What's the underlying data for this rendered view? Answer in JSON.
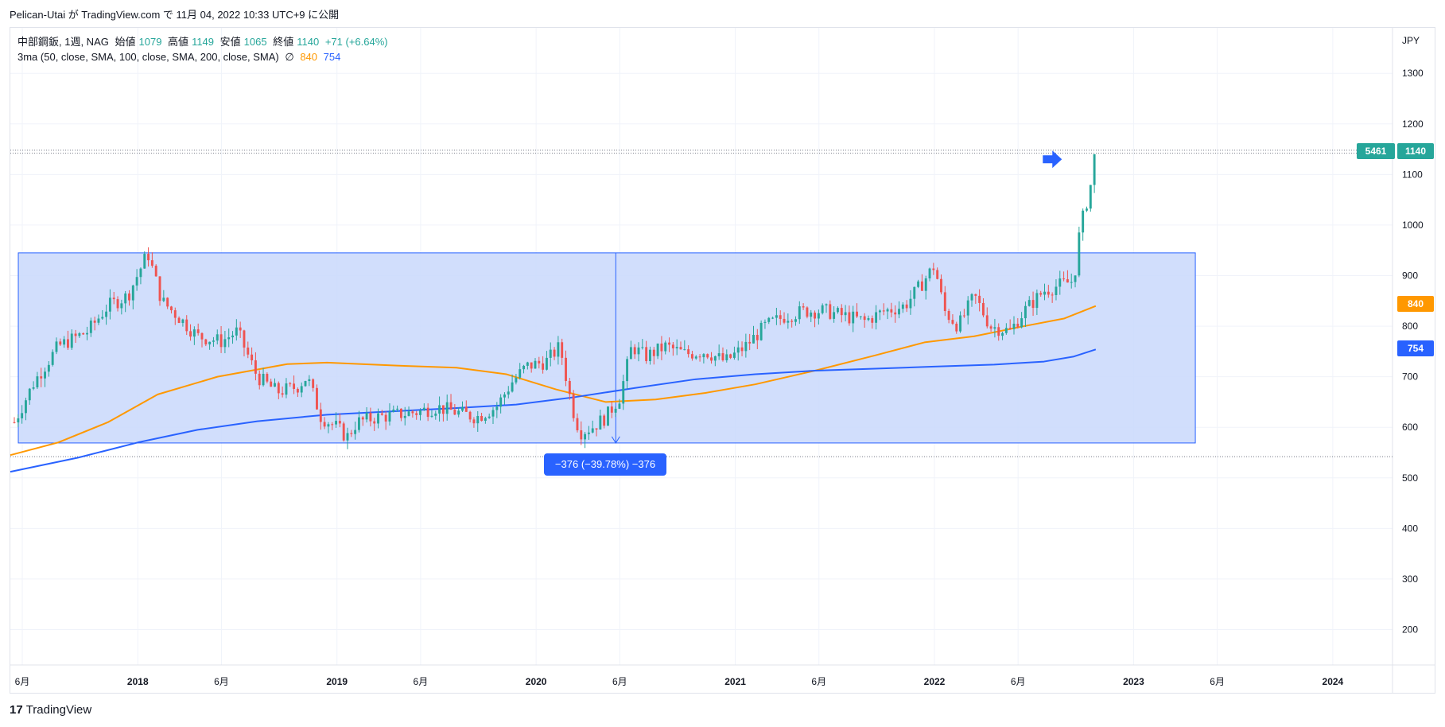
{
  "publisher_line": "Pelican-Utai が TradingView.com で 11月 04, 2022 10:33 UTC+9 に公開",
  "legend": {
    "symbol": "中部鋼鈑, 1週, NAG",
    "open_label": "始値",
    "open": "1079",
    "high_label": "高値",
    "high": "1149",
    "low_label": "安値",
    "low": "1065",
    "close_label": "終値",
    "close": "1140",
    "change": "+71 (+6.64%)",
    "ma_label": "3ma (50, close, SMA, 100, close, SMA, 200, close, SMA)",
    "ma_empty": "∅",
    "ma100": "840",
    "ma200": "754"
  },
  "badges": {
    "countdown": "5461",
    "last_price": "1140",
    "ma100": "840",
    "ma200": "754"
  },
  "measurement_label": "−376 (−39.78%) −376",
  "footer": {
    "logo_mark": "17",
    "logo_text": "TradingView"
  },
  "colors": {
    "up": "#26a69a",
    "down": "#ef5350",
    "ma100": "#ff9800",
    "ma200": "#2962ff",
    "range_fill": "#c9d8fb",
    "range_stroke": "#2962ff",
    "grid": "#f0f3fa"
  },
  "chart_data": {
    "type": "candlestick",
    "title": "中部鋼鈑, 1週, NAG",
    "currency": "JPY",
    "ylim": [
      130,
      1390
    ],
    "y_ticks": [
      200,
      300,
      400,
      500,
      600,
      700,
      800,
      900,
      1000,
      1100,
      1200,
      1300
    ],
    "x_axis": [
      {
        "label": "6月",
        "t": 2017.42,
        "bold": false
      },
      {
        "label": "2018",
        "t": 2018.0,
        "bold": true
      },
      {
        "label": "6月",
        "t": 2018.42,
        "bold": false
      },
      {
        "label": "2019",
        "t": 2019.0,
        "bold": true
      },
      {
        "label": "6月",
        "t": 2019.42,
        "bold": false
      },
      {
        "label": "2020",
        "t": 2020.0,
        "bold": true
      },
      {
        "label": "6月",
        "t": 2020.42,
        "bold": false
      },
      {
        "label": "2021",
        "t": 2021.0,
        "bold": true
      },
      {
        "label": "6月",
        "t": 2021.42,
        "bold": false
      },
      {
        "label": "2022",
        "t": 2022.0,
        "bold": true
      },
      {
        "label": "6月",
        "t": 2022.42,
        "bold": false
      },
      {
        "label": "2023",
        "t": 2023.0,
        "bold": true
      },
      {
        "label": "6月",
        "t": 2023.42,
        "bold": false
      },
      {
        "label": "2024",
        "t": 2024.0,
        "bold": true
      }
    ],
    "xlim": [
      2017.36,
      2024.3
    ],
    "price_path": [
      [
        2017.38,
        610
      ],
      [
        2017.48,
        690
      ],
      [
        2017.6,
        760
      ],
      [
        2017.75,
        790
      ],
      [
        2017.85,
        840
      ],
      [
        2017.95,
        860
      ],
      [
        2018.05,
        945
      ],
      [
        2018.12,
        850
      ],
      [
        2018.2,
        820
      ],
      [
        2018.3,
        780
      ],
      [
        2018.42,
        770
      ],
      [
        2018.5,
        790
      ],
      [
        2018.6,
        700
      ],
      [
        2018.7,
        670
      ],
      [
        2018.8,
        680
      ],
      [
        2018.85,
        700
      ],
      [
        2018.92,
        620
      ],
      [
        2019.0,
        600
      ],
      [
        2019.05,
        580
      ],
      [
        2019.1,
        610
      ],
      [
        2019.2,
        620
      ],
      [
        2019.3,
        625
      ],
      [
        2019.4,
        630
      ],
      [
        2019.5,
        640
      ],
      [
        2019.6,
        630
      ],
      [
        2019.7,
        620
      ],
      [
        2019.8,
        640
      ],
      [
        2019.88,
        690
      ],
      [
        2019.95,
        720
      ],
      [
        2020.05,
        730
      ],
      [
        2020.12,
        760
      ],
      [
        2020.18,
        640
      ],
      [
        2020.22,
        590
      ],
      [
        2020.28,
        600
      ],
      [
        2020.35,
        620
      ],
      [
        2020.42,
        660
      ],
      [
        2020.48,
        760
      ],
      [
        2020.55,
        740
      ],
      [
        2020.65,
        760
      ],
      [
        2020.75,
        745
      ],
      [
        2020.85,
        750
      ],
      [
        2020.95,
        730
      ],
      [
        2021.05,
        760
      ],
      [
        2021.15,
        800
      ],
      [
        2021.25,
        820
      ],
      [
        2021.35,
        830
      ],
      [
        2021.45,
        830
      ],
      [
        2021.55,
        820
      ],
      [
        2021.65,
        810
      ],
      [
        2021.75,
        830
      ],
      [
        2021.85,
        840
      ],
      [
        2021.93,
        880
      ],
      [
        2022.0,
        920
      ],
      [
        2022.05,
        830
      ],
      [
        2022.12,
        800
      ],
      [
        2022.2,
        860
      ],
      [
        2022.28,
        800
      ],
      [
        2022.38,
        790
      ],
      [
        2022.45,
        830
      ],
      [
        2022.55,
        870
      ],
      [
        2022.62,
        880
      ],
      [
        2022.7,
        890
      ],
      [
        2022.73,
        990
      ],
      [
        2022.78,
        1070
      ],
      [
        2022.81,
        1140
      ]
    ],
    "ma100": [
      [
        2017.36,
        545
      ],
      [
        2017.6,
        570
      ],
      [
        2017.85,
        610
      ],
      [
        2018.1,
        665
      ],
      [
        2018.4,
        700
      ],
      [
        2018.75,
        725
      ],
      [
        2018.95,
        728
      ],
      [
        2019.3,
        722
      ],
      [
        2019.6,
        718
      ],
      [
        2019.85,
        705
      ],
      [
        2020.1,
        675
      ],
      [
        2020.35,
        650
      ],
      [
        2020.6,
        655
      ],
      [
        2020.85,
        668
      ],
      [
        2021.1,
        685
      ],
      [
        2021.4,
        712
      ],
      [
        2021.7,
        742
      ],
      [
        2021.95,
        768
      ],
      [
        2022.2,
        780
      ],
      [
        2022.45,
        800
      ],
      [
        2022.65,
        815
      ],
      [
        2022.81,
        840
      ]
    ],
    "ma200": [
      [
        2017.36,
        512
      ],
      [
        2017.7,
        540
      ],
      [
        2018.0,
        570
      ],
      [
        2018.3,
        595
      ],
      [
        2018.6,
        612
      ],
      [
        2018.95,
        625
      ],
      [
        2019.3,
        632
      ],
      [
        2019.6,
        638
      ],
      [
        2019.9,
        645
      ],
      [
        2020.2,
        660
      ],
      [
        2020.5,
        678
      ],
      [
        2020.8,
        695
      ],
      [
        2021.1,
        705
      ],
      [
        2021.4,
        712
      ],
      [
        2021.7,
        716
      ],
      [
        2022.0,
        720
      ],
      [
        2022.3,
        724
      ],
      [
        2022.55,
        730
      ],
      [
        2022.7,
        740
      ],
      [
        2022.81,
        754
      ]
    ],
    "range_box": {
      "t0": 2017.4,
      "t1": 2023.31,
      "top": 945,
      "bottom": 569
    },
    "measurement": {
      "t": 2020.4,
      "from": 945,
      "to": 569,
      "change": -376,
      "percent": -39.78
    },
    "dotted_levels": [
      1148,
      1142,
      542
    ],
    "arrow_marker": {
      "t": 2022.6,
      "price": 1130
    },
    "last_price": 1140,
    "ma100_last": 840,
    "ma200_last": 754
  }
}
